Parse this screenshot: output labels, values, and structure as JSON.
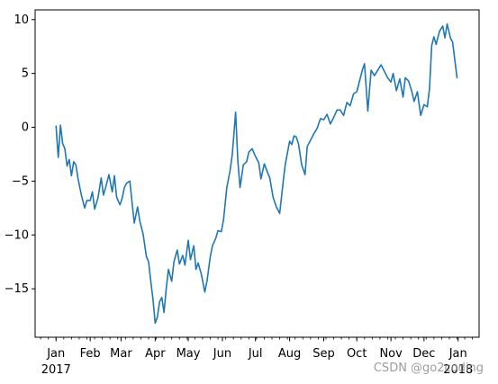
{
  "watermark": "CSDN @go2coding",
  "chart_data": {
    "type": "line",
    "title": "",
    "xlabel": "",
    "ylabel": "",
    "ylim": [
      -19.5,
      10.9
    ],
    "xlim": [
      "2016-12-13",
      "2018-01-20"
    ],
    "grid": false,
    "legend": "none",
    "line_color": "#1f77b4",
    "y_ticks": [
      10,
      5,
      0,
      -5,
      -10,
      -15
    ],
    "y_tick_labels": [
      "10",
      "5",
      "0",
      "−5",
      "−10",
      "−15"
    ],
    "month_ticks": [
      {
        "date": "2017-01-01",
        "label": "Jan",
        "sublabel": "2017"
      },
      {
        "date": "2017-02-01",
        "label": "Feb",
        "sublabel": ""
      },
      {
        "date": "2017-03-01",
        "label": "Mar",
        "sublabel": ""
      },
      {
        "date": "2017-04-01",
        "label": "Apr",
        "sublabel": ""
      },
      {
        "date": "2017-05-01",
        "label": "May",
        "sublabel": ""
      },
      {
        "date": "2017-06-01",
        "label": "Jun",
        "sublabel": ""
      },
      {
        "date": "2017-07-01",
        "label": "Jul",
        "sublabel": ""
      },
      {
        "date": "2017-08-01",
        "label": "Aug",
        "sublabel": ""
      },
      {
        "date": "2017-09-01",
        "label": "Sep",
        "sublabel": ""
      },
      {
        "date": "2017-10-01",
        "label": "Oct",
        "sublabel": ""
      },
      {
        "date": "2017-11-01",
        "label": "Nov",
        "sublabel": ""
      },
      {
        "date": "2017-12-01",
        "label": "Dec",
        "sublabel": ""
      },
      {
        "date": "2018-01-01",
        "label": "Jan",
        "sublabel": "2018"
      }
    ],
    "series": [
      {
        "x": [
          "2017-01-01",
          "2017-01-03",
          "2017-01-05",
          "2017-01-07",
          "2017-01-09",
          "2017-01-11",
          "2017-01-13",
          "2017-01-15",
          "2017-01-17",
          "2017-01-19",
          "2017-01-21",
          "2017-01-24",
          "2017-01-27",
          "2017-01-29",
          "2017-02-01",
          "2017-02-03",
          "2017-02-05",
          "2017-02-08",
          "2017-02-11",
          "2017-02-13",
          "2017-02-15",
          "2017-02-18",
          "2017-02-21",
          "2017-02-23",
          "2017-02-25",
          "2017-02-28",
          "2017-03-02",
          "2017-03-04",
          "2017-03-06",
          "2017-03-09",
          "2017-03-11",
          "2017-03-13",
          "2017-03-16",
          "2017-03-18",
          "2017-03-21",
          "2017-03-24",
          "2017-03-26",
          "2017-03-28",
          "2017-03-30",
          "2017-04-01",
          "2017-04-03",
          "2017-04-05",
          "2017-04-07",
          "2017-04-09",
          "2017-04-11",
          "2017-04-13",
          "2017-04-16",
          "2017-04-18",
          "2017-04-21",
          "2017-04-23",
          "2017-04-26",
          "2017-04-28",
          "2017-05-01",
          "2017-05-03",
          "2017-05-06",
          "2017-05-08",
          "2017-05-10",
          "2017-05-13",
          "2017-05-16",
          "2017-05-18",
          "2017-05-21",
          "2017-05-23",
          "2017-05-26",
          "2017-05-28",
          "2017-05-31",
          "2017-06-02",
          "2017-06-05",
          "2017-06-08",
          "2017-06-10",
          "2017-06-13",
          "2017-06-15",
          "2017-06-17",
          "2017-06-20",
          "2017-06-23",
          "2017-06-25",
          "2017-06-28",
          "2017-07-01",
          "2017-07-04",
          "2017-07-06",
          "2017-07-09",
          "2017-07-12",
          "2017-07-14",
          "2017-07-17",
          "2017-07-20",
          "2017-07-23",
          "2017-07-26",
          "2017-07-28",
          "2017-08-01",
          "2017-08-03",
          "2017-08-05",
          "2017-08-07",
          "2017-08-09",
          "2017-08-12",
          "2017-08-15",
          "2017-08-17",
          "2017-08-20",
          "2017-08-23",
          "2017-08-26",
          "2017-08-29",
          "2017-09-01",
          "2017-09-04",
          "2017-09-07",
          "2017-09-10",
          "2017-09-13",
          "2017-09-16",
          "2017-09-19",
          "2017-09-22",
          "2017-09-25",
          "2017-09-28",
          "2017-10-01",
          "2017-10-04",
          "2017-10-06",
          "2017-10-08",
          "2017-10-11",
          "2017-10-14",
          "2017-10-17",
          "2017-10-20",
          "2017-10-23",
          "2017-10-26",
          "2017-10-29",
          "2017-11-01",
          "2017-11-03",
          "2017-11-06",
          "2017-11-09",
          "2017-11-12",
          "2017-11-14",
          "2017-11-17",
          "2017-11-20",
          "2017-11-22",
          "2017-11-25",
          "2017-11-28",
          "2017-12-01",
          "2017-12-04",
          "2017-12-06",
          "2017-12-08",
          "2017-12-10",
          "2017-12-12",
          "2017-12-15",
          "2017-12-18",
          "2017-12-20",
          "2017-12-22",
          "2017-12-25",
          "2017-12-27",
          "2017-12-29",
          "2017-12-31"
        ],
        "y": [
          0.1,
          -2.8,
          0.2,
          -1.5,
          -2.0,
          -3.6,
          -3.0,
          -4.5,
          -3.2,
          -3.5,
          -4.8,
          -6.3,
          -7.5,
          -6.8,
          -6.8,
          -6.0,
          -7.6,
          -6.6,
          -4.7,
          -6.3,
          -5.6,
          -4.4,
          -6.0,
          -4.5,
          -6.5,
          -7.2,
          -6.6,
          -5.6,
          -5.2,
          -5.0,
          -7.0,
          -8.9,
          -7.4,
          -8.7,
          -9.9,
          -12.0,
          -12.5,
          -14.3,
          -16.0,
          -18.2,
          -17.6,
          -16.2,
          -15.8,
          -17.2,
          -15.0,
          -13.2,
          -14.3,
          -12.5,
          -11.4,
          -12.7,
          -11.9,
          -12.8,
          -10.5,
          -12.3,
          -11.0,
          -13.2,
          -12.6,
          -13.7,
          -15.3,
          -14.3,
          -12.0,
          -11.0,
          -10.3,
          -9.6,
          -9.7,
          -8.6,
          -5.6,
          -4.0,
          -2.5,
          1.4,
          -3.1,
          -5.6,
          -3.5,
          -3.2,
          -2.3,
          -2.0,
          -2.7,
          -3.3,
          -4.8,
          -3.4,
          -4.2,
          -4.7,
          -6.5,
          -7.4,
          -8.0,
          -5.2,
          -3.5,
          -1.3,
          -1.6,
          -0.8,
          -0.9,
          -1.5,
          -3.5,
          -4.4,
          -1.8,
          -1.2,
          -0.6,
          -0.1,
          0.8,
          0.7,
          1.2,
          0.3,
          0.9,
          1.6,
          1.6,
          1.1,
          2.3,
          2.0,
          3.1,
          3.3,
          4.5,
          5.3,
          5.9,
          1.5,
          5.3,
          4.8,
          5.3,
          5.8,
          5.2,
          4.6,
          4.2,
          5.0,
          3.4,
          4.5,
          2.8,
          4.6,
          4.3,
          3.3,
          2.4,
          3.3,
          1.1,
          2.1,
          1.9,
          3.6,
          7.6,
          8.4,
          7.7,
          8.9,
          9.4,
          8.3,
          9.6,
          8.3,
          7.9,
          6.2,
          4.6
        ]
      }
    ]
  }
}
